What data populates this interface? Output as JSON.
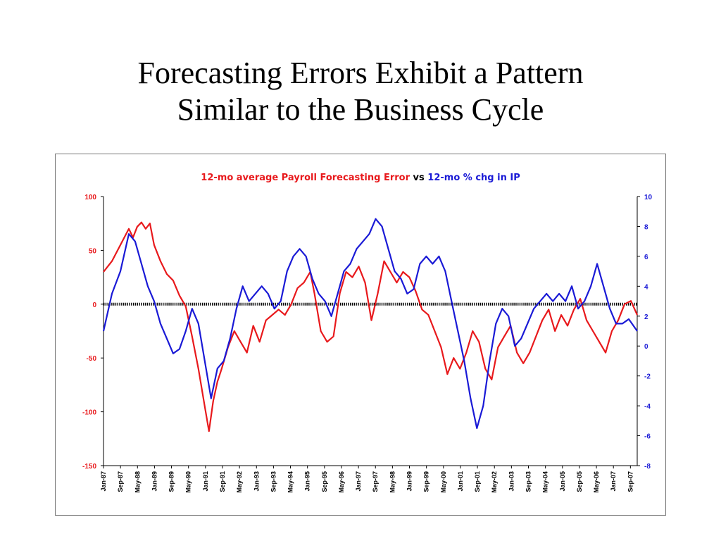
{
  "slide": {
    "title_line1": "Forecasting Errors Exhibit a Pattern",
    "title_line2": "Similar to the Business Cycle"
  },
  "chart_data": {
    "type": "line",
    "title_part1": "12-mo average Payroll Forecasting Error",
    "title_part2": " vs ",
    "title_part3": "12-mo % chg in IP",
    "colors": {
      "left_series": "#e8191c",
      "right_series": "#1a1ad6",
      "zero_line": "#000000"
    },
    "x_start": "1987-01",
    "x_end": "2008-02",
    "x_tick_labels": [
      "Jan-87",
      "Sep-87",
      "May-88",
      "Jan-89",
      "Sep-89",
      "May-90",
      "Jan-91",
      "Sep-91",
      "May-92",
      "Jan-93",
      "Sep-93",
      "May-94",
      "Jan-95",
      "Sep-95",
      "May-96",
      "Jan-97",
      "Sep-97",
      "May-98",
      "Jan-99",
      "Sep-99",
      "May-00",
      "Jan-01",
      "Sep-01",
      "May-02",
      "Jan-03",
      "Sep-03",
      "May-04",
      "Jan-05",
      "Sep-05",
      "May-06",
      "Jan-07",
      "Sep-07"
    ],
    "y_left": {
      "range": [
        -150,
        100
      ],
      "ticks": [
        100,
        50,
        0,
        -50,
        -100,
        -150
      ]
    },
    "y_right": {
      "range": [
        -8,
        10
      ],
      "ticks": [
        10,
        8,
        6,
        4,
        2,
        0,
        -2,
        -4,
        -6,
        -8
      ]
    },
    "zero_line_left_value": 0,
    "series": [
      {
        "name": "12-mo average Payroll Forecasting Error",
        "axis": "left",
        "points": [
          [
            "1987-01",
            30
          ],
          [
            "1987-05",
            40
          ],
          [
            "1987-09",
            55
          ],
          [
            "1988-01",
            70
          ],
          [
            "1988-03",
            62
          ],
          [
            "1988-05",
            72
          ],
          [
            "1988-07",
            76
          ],
          [
            "1988-09",
            70
          ],
          [
            "1988-11",
            75
          ],
          [
            "1989-01",
            55
          ],
          [
            "1989-04",
            40
          ],
          [
            "1989-07",
            28
          ],
          [
            "1989-10",
            22
          ],
          [
            "1990-01",
            8
          ],
          [
            "1990-04",
            -2
          ],
          [
            "1990-07",
            -30
          ],
          [
            "1990-10",
            -60
          ],
          [
            "1991-01",
            -95
          ],
          [
            "1991-03",
            -118
          ],
          [
            "1991-05",
            -90
          ],
          [
            "1991-07",
            -72
          ],
          [
            "1991-09",
            -60
          ],
          [
            "1991-12",
            -40
          ],
          [
            "1992-03",
            -25
          ],
          [
            "1992-06",
            -35
          ],
          [
            "1992-09",
            -45
          ],
          [
            "1992-12",
            -20
          ],
          [
            "1993-03",
            -35
          ],
          [
            "1993-06",
            -15
          ],
          [
            "1993-09",
            -10
          ],
          [
            "1993-12",
            -5
          ],
          [
            "1994-03",
            -10
          ],
          [
            "1994-06",
            0
          ],
          [
            "1994-09",
            15
          ],
          [
            "1994-12",
            20
          ],
          [
            "1995-03",
            30
          ],
          [
            "1995-05",
            10
          ],
          [
            "1995-08",
            -25
          ],
          [
            "1995-11",
            -35
          ],
          [
            "1996-02",
            -30
          ],
          [
            "1996-05",
            10
          ],
          [
            "1996-08",
            30
          ],
          [
            "1996-11",
            25
          ],
          [
            "1997-02",
            35
          ],
          [
            "1997-05",
            20
          ],
          [
            "1997-08",
            -15
          ],
          [
            "1997-11",
            10
          ],
          [
            "1998-02",
            40
          ],
          [
            "1998-05",
            30
          ],
          [
            "1998-08",
            20
          ],
          [
            "1998-11",
            30
          ],
          [
            "1999-02",
            25
          ],
          [
            "1999-05",
            12
          ],
          [
            "1999-08",
            -5
          ],
          [
            "1999-11",
            -10
          ],
          [
            "2000-02",
            -25
          ],
          [
            "2000-05",
            -40
          ],
          [
            "2000-08",
            -65
          ],
          [
            "2000-11",
            -50
          ],
          [
            "2001-02",
            -60
          ],
          [
            "2001-05",
            -45
          ],
          [
            "2001-08",
            -25
          ],
          [
            "2001-11",
            -35
          ],
          [
            "2002-02",
            -60
          ],
          [
            "2002-05",
            -70
          ],
          [
            "2002-08",
            -40
          ],
          [
            "2002-11",
            -30
          ],
          [
            "2003-02",
            -20
          ],
          [
            "2003-05",
            -45
          ],
          [
            "2003-08",
            -55
          ],
          [
            "2003-11",
            -45
          ],
          [
            "2004-02",
            -30
          ],
          [
            "2004-05",
            -15
          ],
          [
            "2004-08",
            -5
          ],
          [
            "2004-11",
            -25
          ],
          [
            "2005-02",
            -10
          ],
          [
            "2005-05",
            -20
          ],
          [
            "2005-08",
            -5
          ],
          [
            "2005-11",
            5
          ],
          [
            "2006-02",
            -15
          ],
          [
            "2006-05",
            -25
          ],
          [
            "2006-08",
            -35
          ],
          [
            "2006-11",
            -45
          ],
          [
            "2007-02",
            -25
          ],
          [
            "2007-05",
            -15
          ],
          [
            "2007-08",
            0
          ],
          [
            "2007-11",
            3
          ],
          [
            "2008-02",
            -10
          ]
        ]
      },
      {
        "name": "12-mo % chg in IP",
        "axis": "right",
        "points": [
          [
            "1987-01",
            1.0
          ],
          [
            "1987-05",
            3.5
          ],
          [
            "1987-09",
            5.0
          ],
          [
            "1988-01",
            7.5
          ],
          [
            "1988-04",
            7.0
          ],
          [
            "1988-07",
            5.5
          ],
          [
            "1988-10",
            4.0
          ],
          [
            "1989-01",
            3.0
          ],
          [
            "1989-04",
            1.5
          ],
          [
            "1989-07",
            0.5
          ],
          [
            "1989-10",
            -0.5
          ],
          [
            "1990-01",
            -0.2
          ],
          [
            "1990-04",
            1.0
          ],
          [
            "1990-07",
            2.5
          ],
          [
            "1990-10",
            1.5
          ],
          [
            "1991-01",
            -1.0
          ],
          [
            "1991-04",
            -3.5
          ],
          [
            "1991-07",
            -1.5
          ],
          [
            "1991-10",
            -1.0
          ],
          [
            "1992-01",
            0.5
          ],
          [
            "1992-04",
            2.5
          ],
          [
            "1992-07",
            4.0
          ],
          [
            "1992-10",
            3.0
          ],
          [
            "1993-01",
            3.5
          ],
          [
            "1993-04",
            4.0
          ],
          [
            "1993-07",
            3.5
          ],
          [
            "1993-10",
            2.5
          ],
          [
            "1994-01",
            3.0
          ],
          [
            "1994-04",
            5.0
          ],
          [
            "1994-07",
            6.0
          ],
          [
            "1994-10",
            6.5
          ],
          [
            "1995-01",
            6.0
          ],
          [
            "1995-04",
            4.5
          ],
          [
            "1995-07",
            3.5
          ],
          [
            "1995-10",
            3.0
          ],
          [
            "1996-01",
            2.0
          ],
          [
            "1996-04",
            3.5
          ],
          [
            "1996-07",
            5.0
          ],
          [
            "1996-10",
            5.5
          ],
          [
            "1997-01",
            6.5
          ],
          [
            "1997-04",
            7.0
          ],
          [
            "1997-07",
            7.5
          ],
          [
            "1997-10",
            8.5
          ],
          [
            "1998-01",
            8.0
          ],
          [
            "1998-04",
            6.5
          ],
          [
            "1998-07",
            5.0
          ],
          [
            "1998-10",
            4.5
          ],
          [
            "1999-01",
            3.5
          ],
          [
            "1999-04",
            3.8
          ],
          [
            "1999-07",
            5.5
          ],
          [
            "1999-10",
            6.0
          ],
          [
            "2000-01",
            5.5
          ],
          [
            "2000-04",
            6.0
          ],
          [
            "2000-07",
            5.0
          ],
          [
            "2000-10",
            3.0
          ],
          [
            "2001-01",
            1.0
          ],
          [
            "2001-04",
            -1.0
          ],
          [
            "2001-07",
            -3.5
          ],
          [
            "2001-10",
            -5.5
          ],
          [
            "2002-01",
            -4.0
          ],
          [
            "2002-04",
            -1.0
          ],
          [
            "2002-07",
            1.5
          ],
          [
            "2002-10",
            2.5
          ],
          [
            "2003-01",
            2.0
          ],
          [
            "2003-04",
            0.0
          ],
          [
            "2003-07",
            0.5
          ],
          [
            "2003-10",
            1.5
          ],
          [
            "2004-01",
            2.5
          ],
          [
            "2004-04",
            3.0
          ],
          [
            "2004-07",
            3.5
          ],
          [
            "2004-10",
            3.0
          ],
          [
            "2005-01",
            3.5
          ],
          [
            "2005-04",
            3.0
          ],
          [
            "2005-07",
            4.0
          ],
          [
            "2005-10",
            2.5
          ],
          [
            "2006-01",
            3.0
          ],
          [
            "2006-04",
            4.0
          ],
          [
            "2006-07",
            5.5
          ],
          [
            "2006-10",
            4.0
          ],
          [
            "2007-01",
            2.5
          ],
          [
            "2007-04",
            1.5
          ],
          [
            "2007-07",
            1.5
          ],
          [
            "2007-10",
            1.8
          ],
          [
            "2008-02",
            1.0
          ]
        ]
      }
    ]
  }
}
